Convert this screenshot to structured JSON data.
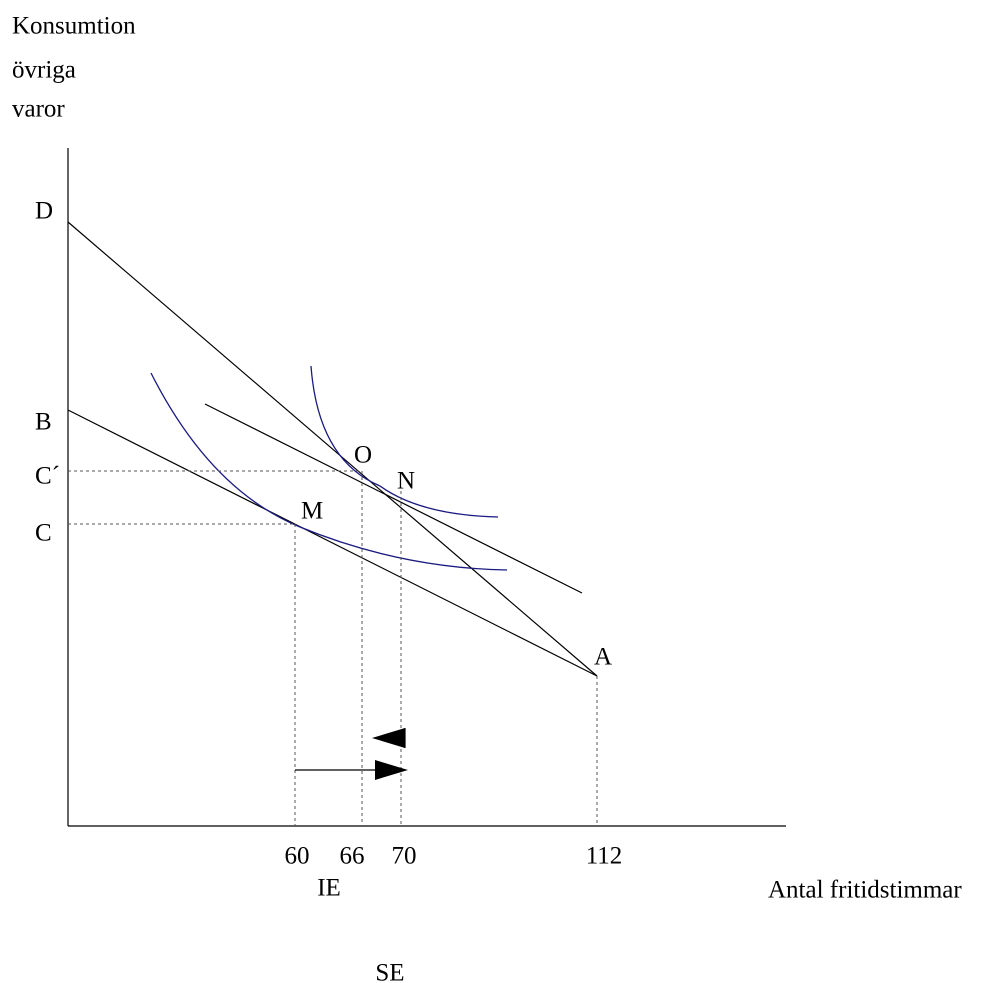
{
  "y_axis_label": [
    "Konsumtion",
    "övriga",
    "varor"
  ],
  "x_axis_label": "Antal fritidstimmar",
  "points": {
    "D": "D",
    "B": "B",
    "C_prime": "C´",
    "C": "C",
    "O": "O",
    "N": "N",
    "M": "M",
    "A": "A"
  },
  "x_ticks": [
    60,
    66,
    70,
    112
  ],
  "arrows": {
    "income_effect": "IE",
    "substitution_effect": "SE"
  }
}
